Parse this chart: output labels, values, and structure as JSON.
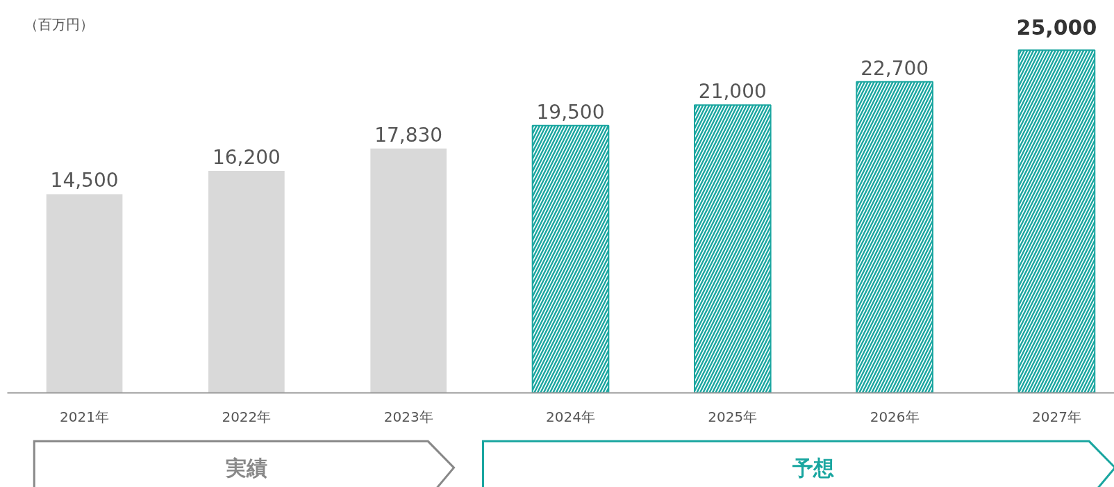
{
  "chart_data": {
    "type": "bar",
    "ylabel": "（百万円）",
    "categories": [
      "2021年",
      "2022年",
      "2023年",
      "2024年",
      "2025年",
      "2026年",
      "2027年"
    ],
    "series": [
      {
        "color": "#d9d9d9",
        "values": [
          14500,
          16200,
          17830,
          null,
          null,
          null,
          null
        ],
        "value_labels": [
          "14,500",
          "16,200",
          "17,830",
          null,
          null,
          null,
          null
        ]
      },
      {
        "color": "#1aa6a0",
        "values": [
          null,
          null,
          null,
          19500,
          21000,
          22700,
          25000
        ],
        "value_labels": [
          null,
          null,
          null,
          "19,500",
          "21,000",
          "22,700",
          "25,000"
        ]
      }
    ],
    "annotations": [
      "実績",
      "予想"
    ],
    "grid": false
  }
}
